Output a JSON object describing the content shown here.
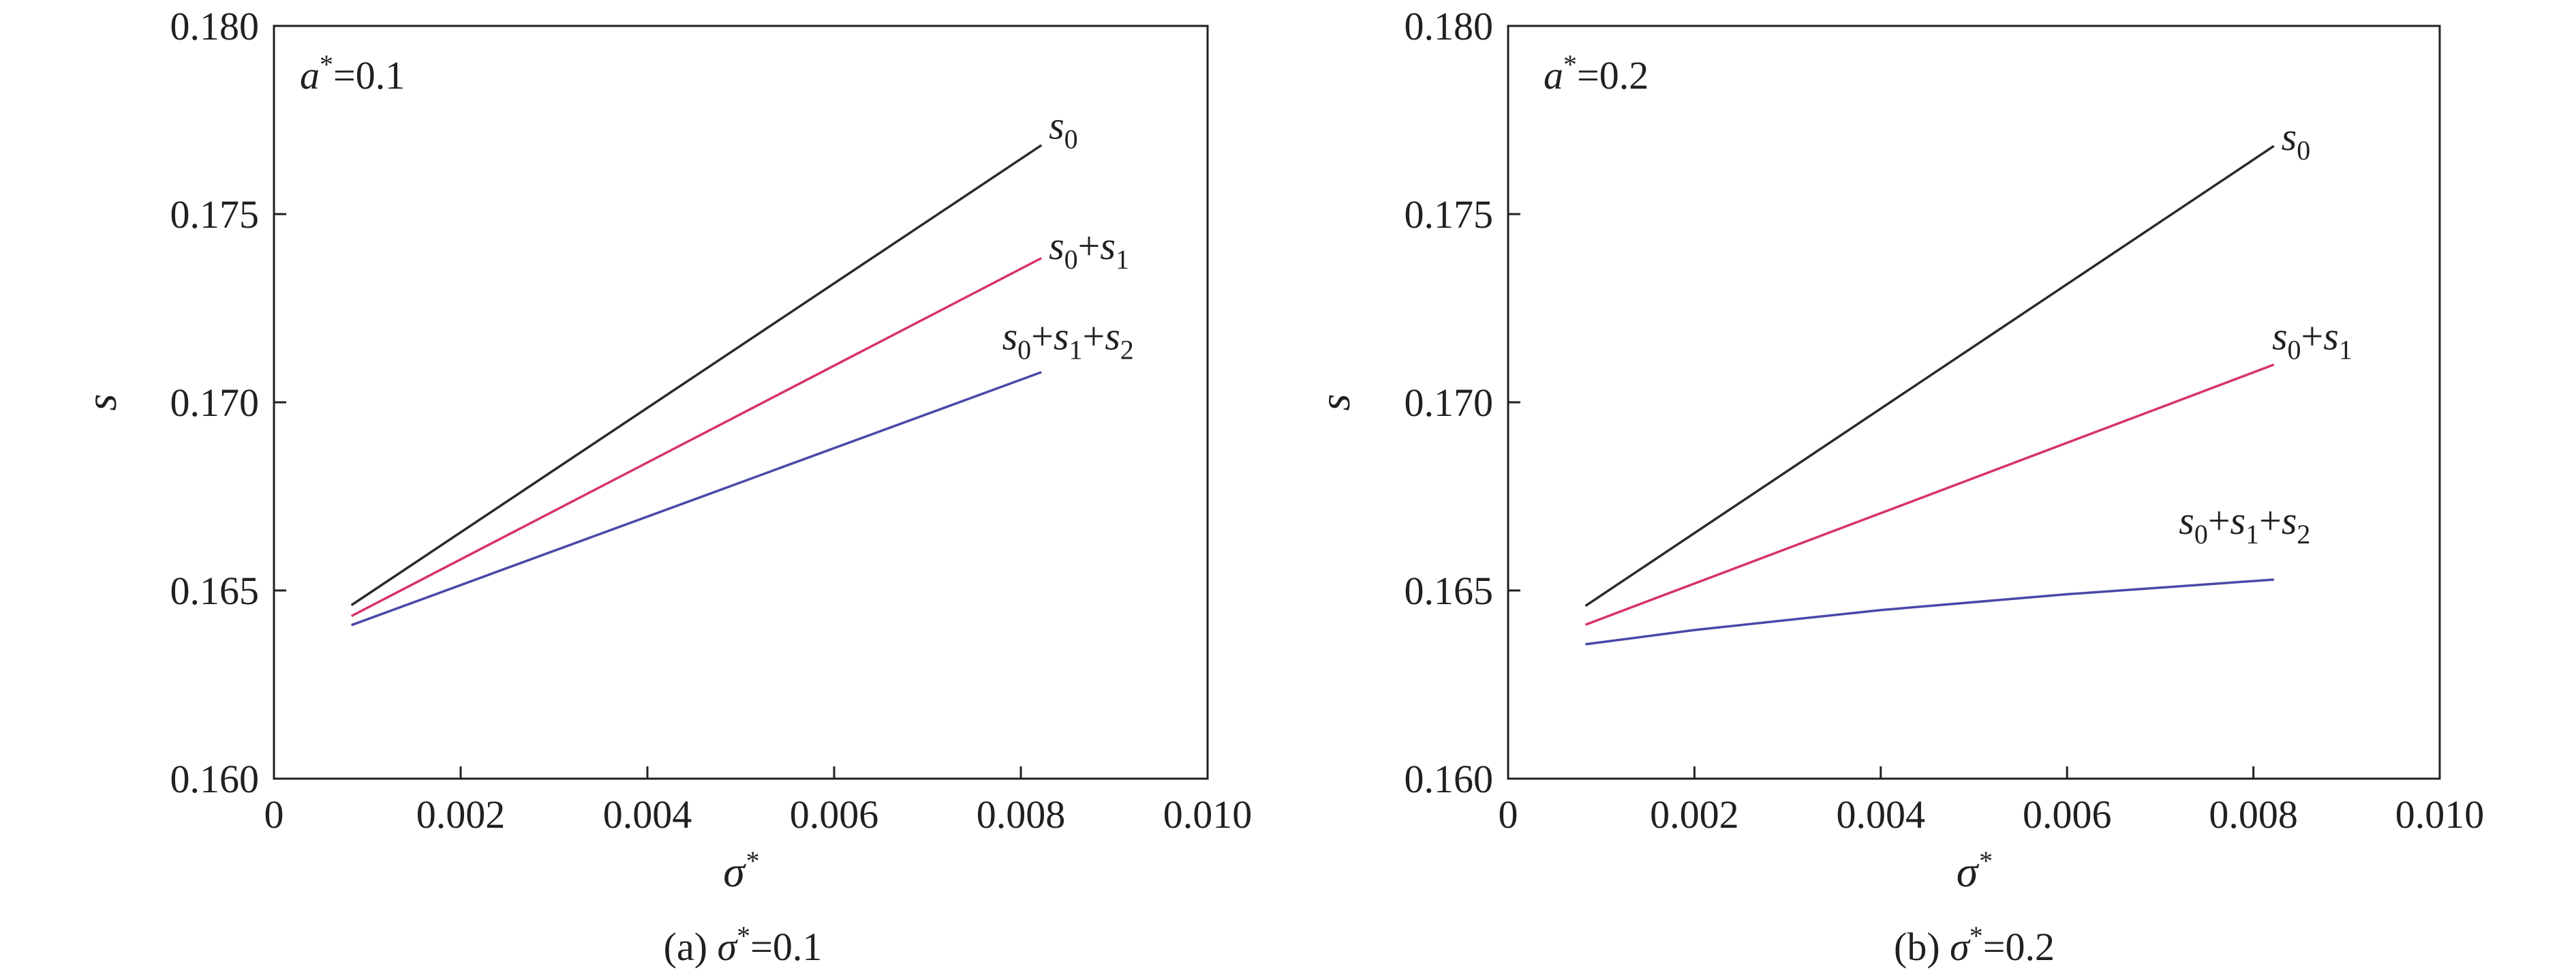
{
  "colors": {
    "axis": "#231f20",
    "s0": "#2b2b2b",
    "s0_s1": "#d6336c",
    "s0_s1_s2": "#4a48a8"
  },
  "chart_data": [
    {
      "type": "line",
      "caption": {
        "prefix": "(a) ",
        "symbol": "σ",
        "sup": "*",
        "value": "=0.1"
      },
      "annotation": {
        "symbol": "a",
        "sup": "*",
        "value": "=0.1"
      },
      "xlabel": {
        "symbol": "σ",
        "sup": "*"
      },
      "ylabel": "s",
      "xlim": [
        0,
        0.01
      ],
      "ylim": [
        0.16,
        0.18
      ],
      "xticks": [
        "0",
        "0.002",
        "0.004",
        "0.006",
        "0.008",
        "0.010"
      ],
      "yticks": [
        "0.160",
        "0.165",
        "0.170",
        "0.175",
        "0.180"
      ],
      "series": [
        {
          "name": "s0",
          "x": [
            0.00083,
            0.00822
          ],
          "y": [
            0.16461,
            0.17683
          ]
        },
        {
          "name": "s0+s1",
          "x": [
            0.00083,
            0.00822
          ],
          "y": [
            0.16432,
            0.17383
          ]
        },
        {
          "name": "s0+s1+s2",
          "x": [
            0.00083,
            0.00822
          ],
          "y": [
            0.16408,
            0.1708
          ]
        }
      ],
      "series_labels": [
        {
          "parts": [
            [
              "s",
              "0"
            ]
          ],
          "at": [
            0.0083,
            0.177
          ]
        },
        {
          "parts": [
            [
              "s",
              "0"
            ],
            [
              "s",
              "1"
            ]
          ],
          "at": [
            0.0083,
            0.1738
          ]
        },
        {
          "parts": [
            [
              "s",
              "0"
            ],
            [
              "s",
              "1"
            ],
            [
              "s",
              "2"
            ]
          ],
          "at": [
            0.0078,
            0.1714
          ]
        }
      ]
    },
    {
      "type": "line",
      "caption": {
        "prefix": "(b) ",
        "symbol": "σ",
        "sup": "*",
        "value": "=0.2"
      },
      "annotation": {
        "symbol": "a",
        "sup": "*",
        "value": "=0.2"
      },
      "xlabel": {
        "symbol": "σ",
        "sup": "*"
      },
      "ylabel": "s",
      "xlim": [
        0,
        0.01
      ],
      "ylim": [
        0.16,
        0.18
      ],
      "xticks": [
        "0",
        "0.002",
        "0.004",
        "0.006",
        "0.008",
        "0.010"
      ],
      "yticks": [
        "0.160",
        "0.165",
        "0.170",
        "0.175",
        "0.180"
      ],
      "series": [
        {
          "name": "s0",
          "x": [
            0.00083,
            0.00822
          ],
          "y": [
            0.16459,
            0.17681
          ]
        },
        {
          "name": "s0+s1",
          "x": [
            0.00083,
            0.00822
          ],
          "y": [
            0.16409,
            0.171
          ]
        },
        {
          "name": "s0+s1+s2",
          "x": [
            0.00083,
            0.002,
            0.004,
            0.006,
            0.00822
          ],
          "y": [
            0.16357,
            0.16395,
            0.16448,
            0.1649,
            0.16529
          ]
        }
      ],
      "series_labels": [
        {
          "parts": [
            [
              "s",
              "0"
            ]
          ],
          "at": [
            0.0083,
            0.1767
          ]
        },
        {
          "parts": [
            [
              "s",
              "0"
            ],
            [
              "s",
              "1"
            ]
          ],
          "at": [
            0.0082,
            0.1714
          ]
        },
        {
          "parts": [
            [
              "s",
              "0"
            ],
            [
              "s",
              "1"
            ],
            [
              "s",
              "2"
            ]
          ],
          "at": [
            0.0072,
            0.1665
          ]
        }
      ]
    }
  ]
}
